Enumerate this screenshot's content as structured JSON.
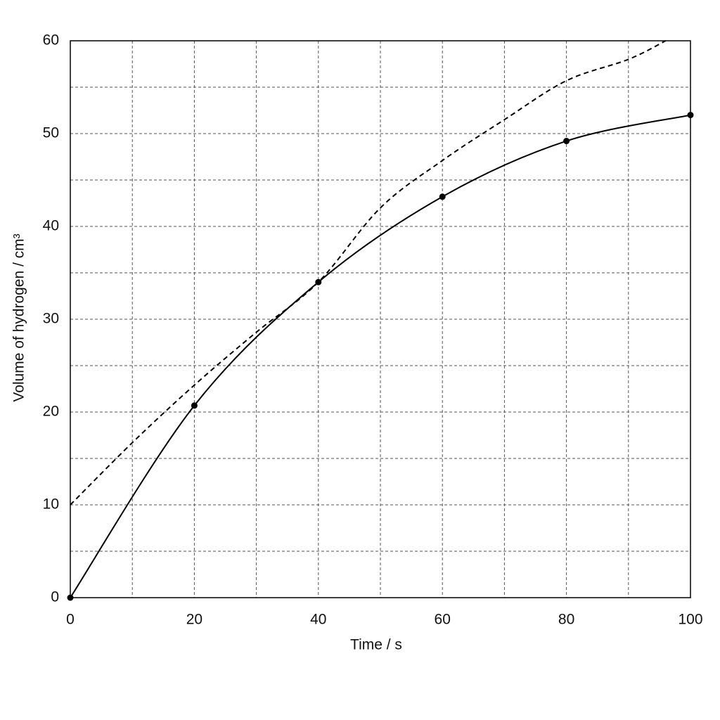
{
  "chart_data": {
    "type": "line",
    "x_label": "Time / s",
    "y_label": "Volume of hydrogen / cm³",
    "xlim": [
      0,
      100
    ],
    "xticks": [
      0,
      20,
      40,
      60,
      80,
      100
    ],
    "ylim": [
      0,
      60
    ],
    "yticks": [
      0,
      10,
      20,
      30,
      40,
      50,
      60
    ],
    "x_minor_grid": [
      10,
      30,
      50,
      70,
      90
    ],
    "y_minor_grid": [
      5,
      15,
      25,
      35,
      45,
      55
    ],
    "grid": true,
    "series": [
      {
        "color": "#000000",
        "line_style": "solid",
        "markers": true,
        "smooth": true,
        "x": [
          0,
          20,
          40,
          60,
          80,
          100
        ],
        "values": [
          0,
          20.7,
          34.0,
          43.2,
          49.2,
          52.0
        ]
      },
      {
        "color": "#000000",
        "line_style": "dashed",
        "markers": false,
        "smooth": true,
        "x": [
          0,
          10,
          20,
          30,
          40,
          50,
          60,
          70,
          80,
          90,
          96
        ],
        "values": [
          10,
          16.7,
          22.9,
          28.6,
          34.0,
          42.0,
          47.1,
          51.5,
          55.7,
          58.0,
          60
        ]
      }
    ]
  }
}
